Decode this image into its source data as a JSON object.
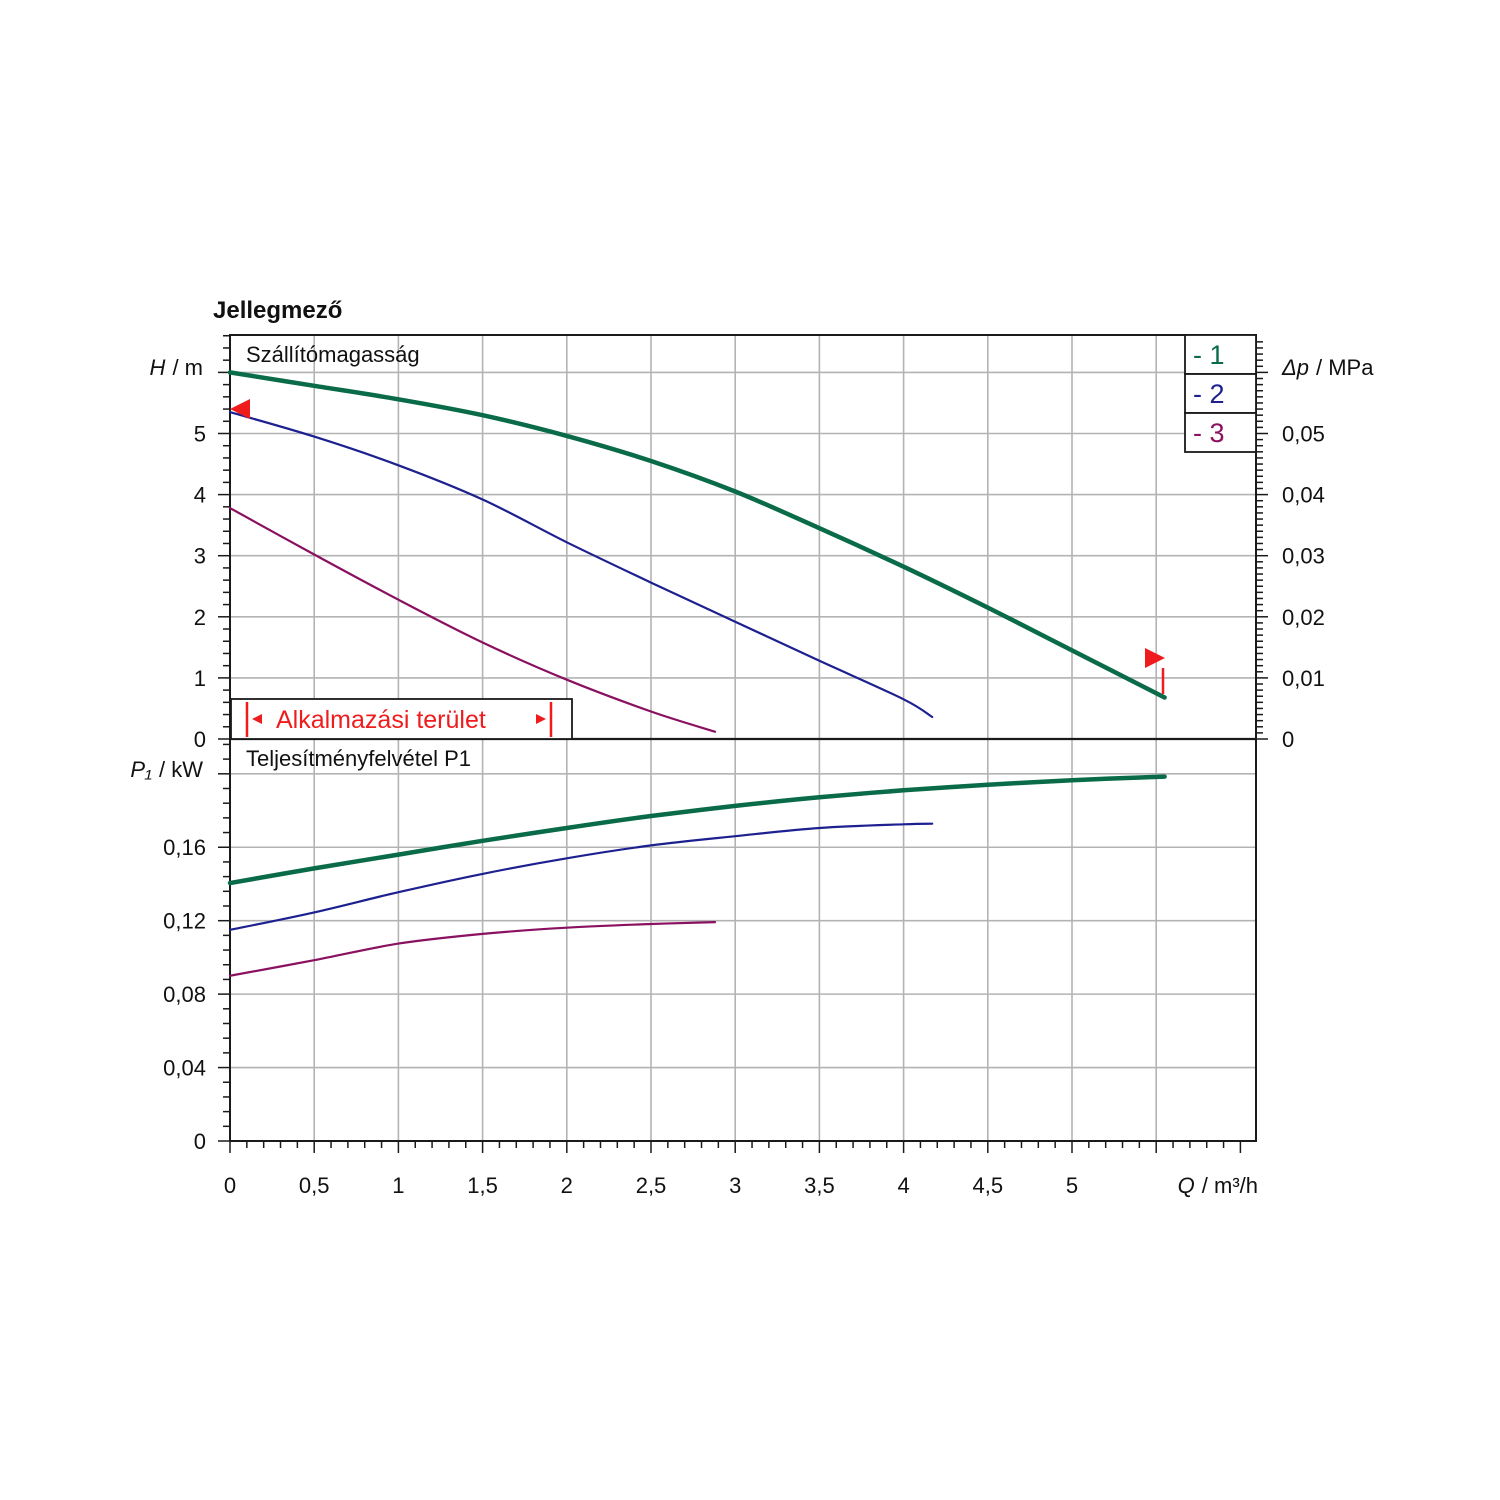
{
  "chart_data": {
    "type": "line",
    "title": "Jellegmező",
    "x_axis": {
      "label_var": "Q",
      "label_unit": "/ m³/h",
      "range": [
        0,
        6.1
      ],
      "ticks": [
        0,
        0.5,
        1,
        1.5,
        2,
        2.5,
        3,
        3.5,
        4,
        4.5,
        5
      ],
      "tick_labels": [
        "0",
        "0,5",
        "1",
        "1,5",
        "2",
        "2,5",
        "3",
        "3,5",
        "4",
        "4,5",
        "5"
      ]
    },
    "panels": [
      {
        "id": "head",
        "title": "Szállítómagasság",
        "y_axis": {
          "label_var": "H",
          "label_unit": "/ m",
          "range": [
            0,
            6.6
          ],
          "ticks": [
            0,
            1,
            2,
            3,
            4,
            5
          ],
          "tick_labels": [
            "0",
            "1",
            "2",
            "3",
            "4",
            "5"
          ]
        },
        "y2_axis": {
          "label_var": "Δp",
          "label_unit": "/ MPa",
          "ticks": [
            0,
            0.01,
            0.02,
            0.03,
            0.04,
            0.05
          ],
          "tick_labels": [
            "0",
            "0,01",
            "0,02",
            "0,03",
            "0,04",
            "0,05"
          ],
          "factor": 0.01
        },
        "series": [
          {
            "name": "- 1",
            "color": "#0a6b48",
            "width": 4.5,
            "x": [
              0,
              0.5,
              1,
              1.5,
              2,
              2.5,
              3,
              3.5,
              4,
              4.5,
              5,
              5.55
            ],
            "y": [
              6.0,
              5.78,
              5.56,
              5.3,
              4.96,
              4.55,
              4.05,
              3.45,
              2.82,
              2.15,
              1.45,
              0.68
            ]
          },
          {
            "name": "- 2",
            "color": "#1d2190",
            "width": 2.2,
            "x": [
              0,
              0.5,
              1,
              1.5,
              2,
              2.5,
              3,
              3.5,
              4,
              4.17
            ],
            "y": [
              5.35,
              4.95,
              4.48,
              3.92,
              3.22,
              2.56,
              1.92,
              1.28,
              0.65,
              0.36
            ]
          },
          {
            "name": "- 3",
            "color": "#8a1060",
            "width": 2.2,
            "x": [
              0,
              0.5,
              1,
              1.5,
              2,
              2.5,
              2.88
            ],
            "y": [
              3.78,
              3.02,
              2.28,
              1.58,
              0.97,
              0.45,
              0.12
            ]
          }
        ],
        "annotation": {
          "text": "Alkalmazási terület",
          "color": "#ee1c1c"
        }
      },
      {
        "id": "power",
        "title": "Teljesítményfelvétel P1",
        "y_axis": {
          "label_var": "P₁",
          "label_unit": "/ kW",
          "range": [
            0,
            0.22
          ],
          "ticks": [
            0,
            0.04,
            0.08,
            0.12,
            0.16
          ],
          "tick_labels": [
            "0",
            "0,04",
            "0,08",
            "0,12",
            "0,16"
          ]
        },
        "series": [
          {
            "name": "- 1",
            "color": "#0a6b48",
            "width": 4.5,
            "x": [
              0,
              0.5,
              1,
              1.5,
              2,
              2.5,
              3,
              3.5,
              4,
              4.5,
              5,
              5.55
            ],
            "y": [
              0.1405,
              0.1485,
              0.156,
              0.1635,
              0.1705,
              0.177,
              0.1825,
              0.1872,
              0.191,
              0.194,
              0.1965,
              0.1985
            ]
          },
          {
            "name": "- 2",
            "color": "#1d2190",
            "width": 2.2,
            "x": [
              0,
              0.5,
              1,
              1.5,
              2,
              2.5,
              3,
              3.5,
              4,
              4.17
            ],
            "y": [
              0.115,
              0.1245,
              0.1355,
              0.1455,
              0.154,
              0.161,
              0.166,
              0.1705,
              0.1725,
              0.1728
            ]
          },
          {
            "name": "- 3",
            "color": "#8a1060",
            "width": 2.2,
            "x": [
              0,
              0.5,
              1,
              1.5,
              2,
              2.5,
              2.88
            ],
            "y": [
              0.09,
              0.0985,
              0.1075,
              0.1128,
              0.1162,
              0.1182,
              0.1192
            ]
          }
        ]
      }
    ],
    "legend": {
      "placement": "top-right",
      "entries": [
        {
          "label": "- 1",
          "color": "#0a6b48"
        },
        {
          "label": "- 2",
          "color": "#1d2190"
        },
        {
          "label": "- 3",
          "color": "#8a1060"
        }
      ]
    },
    "grid": true
  }
}
